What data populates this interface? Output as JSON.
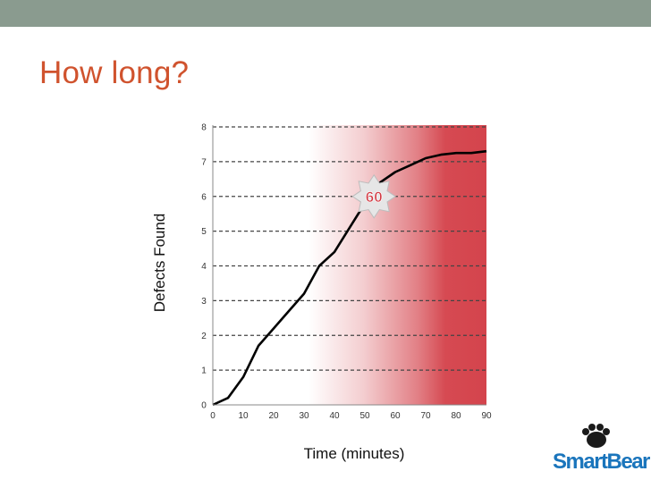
{
  "slide": {
    "title": "How long?",
    "logo_text_a": "Smart",
    "logo_text_b": "Bear"
  },
  "chart_data": {
    "type": "line",
    "xlabel": "Time (minutes)",
    "ylabel": "Defects Found",
    "xlim": [
      0,
      90
    ],
    "ylim": [
      0,
      8
    ],
    "xticks": [
      0,
      10,
      20,
      30,
      40,
      50,
      60,
      70,
      80,
      90
    ],
    "yticks": [
      0,
      1,
      2,
      3,
      4,
      5,
      6,
      7,
      8
    ],
    "grid": "horizontal dashed",
    "series": [
      {
        "color": "#000000",
        "x": [
          0,
          5,
          10,
          15,
          20,
          25,
          30,
          35,
          40,
          45,
          50,
          55,
          60,
          65,
          70,
          75,
          80,
          85,
          90
        ],
        "y": [
          0,
          0.2,
          0.8,
          1.7,
          2.2,
          2.7,
          3.2,
          4.0,
          4.4,
          5.1,
          5.8,
          6.4,
          6.7,
          6.9,
          7.1,
          7.2,
          7.25,
          7.25,
          7.3
        ]
      }
    ],
    "annotation": {
      "label": "60",
      "x": 53,
      "y": 6
    },
    "shading_color": "#d23a43"
  }
}
